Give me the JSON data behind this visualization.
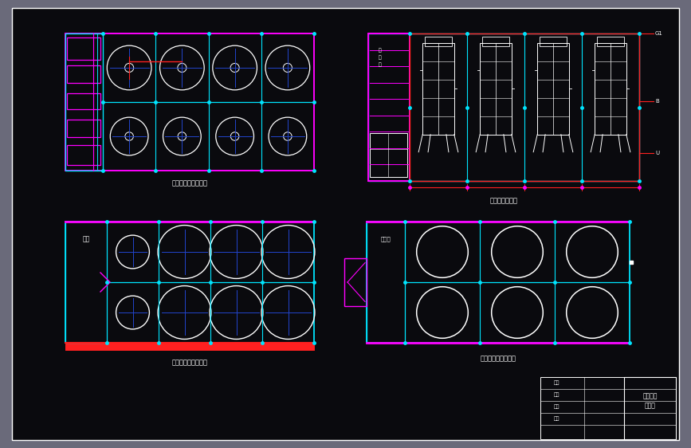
{
  "bg_color": "#0a0a0e",
  "gray_border": "#6a6a7a",
  "cyan": "#00e5ff",
  "magenta": "#ff00ff",
  "blue_dark": "#2244cc",
  "red": "#ff2020",
  "white": "#ffffff",
  "title_top_left": "发酵车间三层平面图",
  "title_top_right": "发酵车间立面图",
  "title_bot_left": "发酵车间二层平面图",
  "title_bot_right": "发酵车间一层平面图",
  "text_pumps": "泵房",
  "text_elec": "配电室",
  "figsize": [
    8.67,
    5.62
  ],
  "dpi": 100
}
